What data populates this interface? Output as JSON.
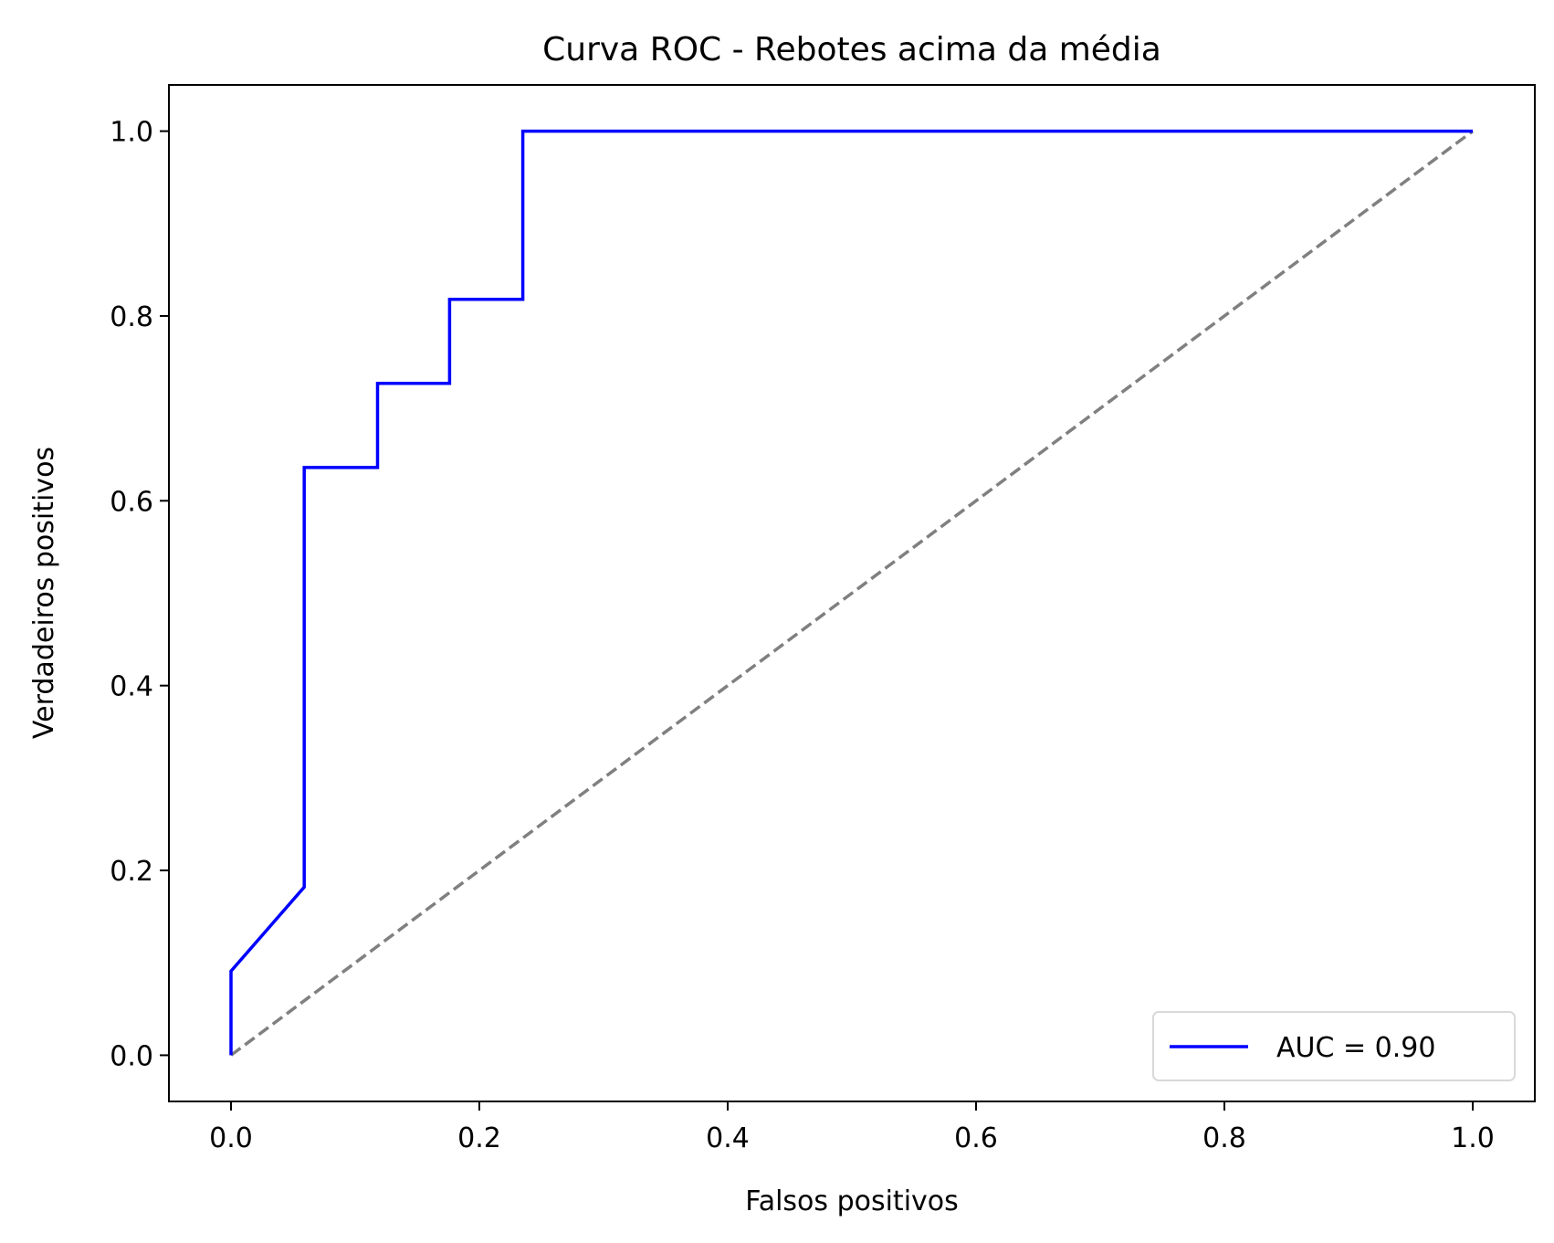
{
  "chart_data": {
    "type": "line",
    "title": "Curva ROC - Rebotes acima da média",
    "xlabel": "Falsos positivos",
    "ylabel": "Verdadeiros positivos",
    "xlim": [
      -0.05,
      1.05
    ],
    "ylim": [
      -0.05,
      1.05
    ],
    "xticks": [
      0.0,
      0.2,
      0.4,
      0.6,
      0.8,
      1.0
    ],
    "yticks": [
      0.0,
      0.2,
      0.4,
      0.6,
      0.8,
      1.0
    ],
    "xtick_labels": [
      "0.0",
      "0.2",
      "0.4",
      "0.6",
      "0.8",
      "1.0"
    ],
    "ytick_labels": [
      "0.0",
      "0.2",
      "0.4",
      "0.6",
      "0.8",
      "1.0"
    ],
    "grid": false,
    "legend_position": "lower right",
    "series": [
      {
        "name": "AUC = 0.90",
        "color": "#0000ff",
        "line_style": "solid",
        "x": [
          0.0,
          0.0,
          0.059,
          0.059,
          0.118,
          0.118,
          0.176,
          0.176,
          0.235,
          0.235,
          1.0
        ],
        "y": [
          0.0,
          0.091,
          0.182,
          0.636,
          0.636,
          0.727,
          0.727,
          0.818,
          0.818,
          1.0,
          1.0
        ]
      },
      {
        "color": "#808080",
        "line_style": "dashed",
        "x": [
          0.0,
          1.0
        ],
        "y": [
          0.0,
          1.0
        ]
      }
    ]
  }
}
